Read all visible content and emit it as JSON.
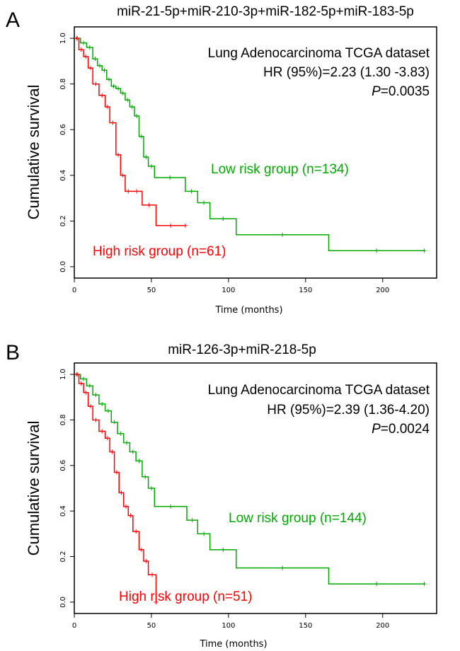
{
  "chart_data": [
    {
      "type": "line",
      "panel": "A",
      "title": "miR-21-5p+miR-210-3p+miR-182-5p+miR-183-5p",
      "xlabel": "Time (months)",
      "ylabel": "Cumulative survival",
      "xlim": [
        0,
        235
      ],
      "ylim": [
        -0.05,
        1.05
      ],
      "x_ticks": [
        0,
        50,
        100,
        150,
        200
      ],
      "y_ticks": [
        0.0,
        0.2,
        0.4,
        0.6,
        0.8,
        1.0
      ],
      "x_tick_labels": [
        "0",
        "50",
        "100",
        "150",
        "200"
      ],
      "y_tick_labels": [
        "0.0",
        "0.2",
        "0.4",
        "0.6",
        "0.8",
        "1.0"
      ],
      "annotation": {
        "line1": "Lung Adenocarcinoma TCGA dataset",
        "line2": "HR (95%)=2.23 (1.30 -3.83)",
        "p_label": "P",
        "p_value": "=0.0035"
      },
      "series": [
        {
          "name": "Low risk group (n=134)",
          "color": "#00aa00",
          "x": [
            0,
            4,
            8,
            12,
            15,
            18,
            21,
            24,
            27,
            30,
            33,
            36,
            39,
            42,
            45,
            48,
            52,
            72,
            80,
            88,
            105,
            165,
            227
          ],
          "y": [
            1.0,
            0.98,
            0.96,
            0.91,
            0.88,
            0.86,
            0.82,
            0.79,
            0.78,
            0.76,
            0.73,
            0.7,
            0.66,
            0.57,
            0.48,
            0.44,
            0.39,
            0.33,
            0.28,
            0.21,
            0.14,
            0.07,
            0.07
          ]
        },
        {
          "name": "High risk group (n=61)",
          "color": "#ff0000",
          "x": [
            0,
            3,
            6,
            9,
            12,
            16,
            20,
            23,
            27,
            30,
            33,
            37,
            44,
            53,
            72
          ],
          "y": [
            1.0,
            0.95,
            0.92,
            0.87,
            0.8,
            0.75,
            0.7,
            0.63,
            0.49,
            0.4,
            0.33,
            0.33,
            0.27,
            0.18,
            0.18
          ]
        }
      ]
    },
    {
      "type": "line",
      "panel": "B",
      "title": "miR-126-3p+miR-218-5p",
      "xlabel": "Time (months)",
      "ylabel": "Cumulative survival",
      "xlim": [
        0,
        235
      ],
      "ylim": [
        -0.05,
        1.05
      ],
      "x_ticks": [
        0,
        50,
        100,
        150,
        200
      ],
      "y_ticks": [
        0.0,
        0.2,
        0.4,
        0.6,
        0.8,
        1.0
      ],
      "x_tick_labels": [
        "0",
        "50",
        "100",
        "150",
        "200"
      ],
      "y_tick_labels": [
        "0.0",
        "0.2",
        "0.4",
        "0.6",
        "0.8",
        "1.0"
      ],
      "annotation": {
        "line1": "Lung Adenocarcinoma TCGA dataset",
        "line2": "HR (95%)=2.39 (1.36-4.20)",
        "p_label": "P",
        "p_value": "=0.0024"
      },
      "series": [
        {
          "name": "Low risk group (n=144)",
          "color": "#00aa00",
          "x": [
            0,
            4,
            8,
            12,
            16,
            20,
            24,
            28,
            32,
            36,
            40,
            44,
            48,
            52,
            73,
            80,
            88,
            105,
            165,
            227
          ],
          "y": [
            1.0,
            0.98,
            0.95,
            0.91,
            0.87,
            0.84,
            0.79,
            0.74,
            0.7,
            0.66,
            0.62,
            0.55,
            0.5,
            0.42,
            0.36,
            0.3,
            0.23,
            0.15,
            0.08,
            0.08
          ]
        },
        {
          "name": "High risk group (n=51)",
          "color": "#ff0000",
          "x": [
            0,
            3,
            6,
            9,
            12,
            16,
            20,
            23,
            26,
            29,
            32,
            35,
            38,
            42,
            45,
            48,
            53
          ],
          "y": [
            1.0,
            0.96,
            0.92,
            0.86,
            0.8,
            0.75,
            0.72,
            0.66,
            0.57,
            0.48,
            0.42,
            0.38,
            0.31,
            0.23,
            0.18,
            0.12,
            0.0
          ]
        }
      ]
    }
  ]
}
